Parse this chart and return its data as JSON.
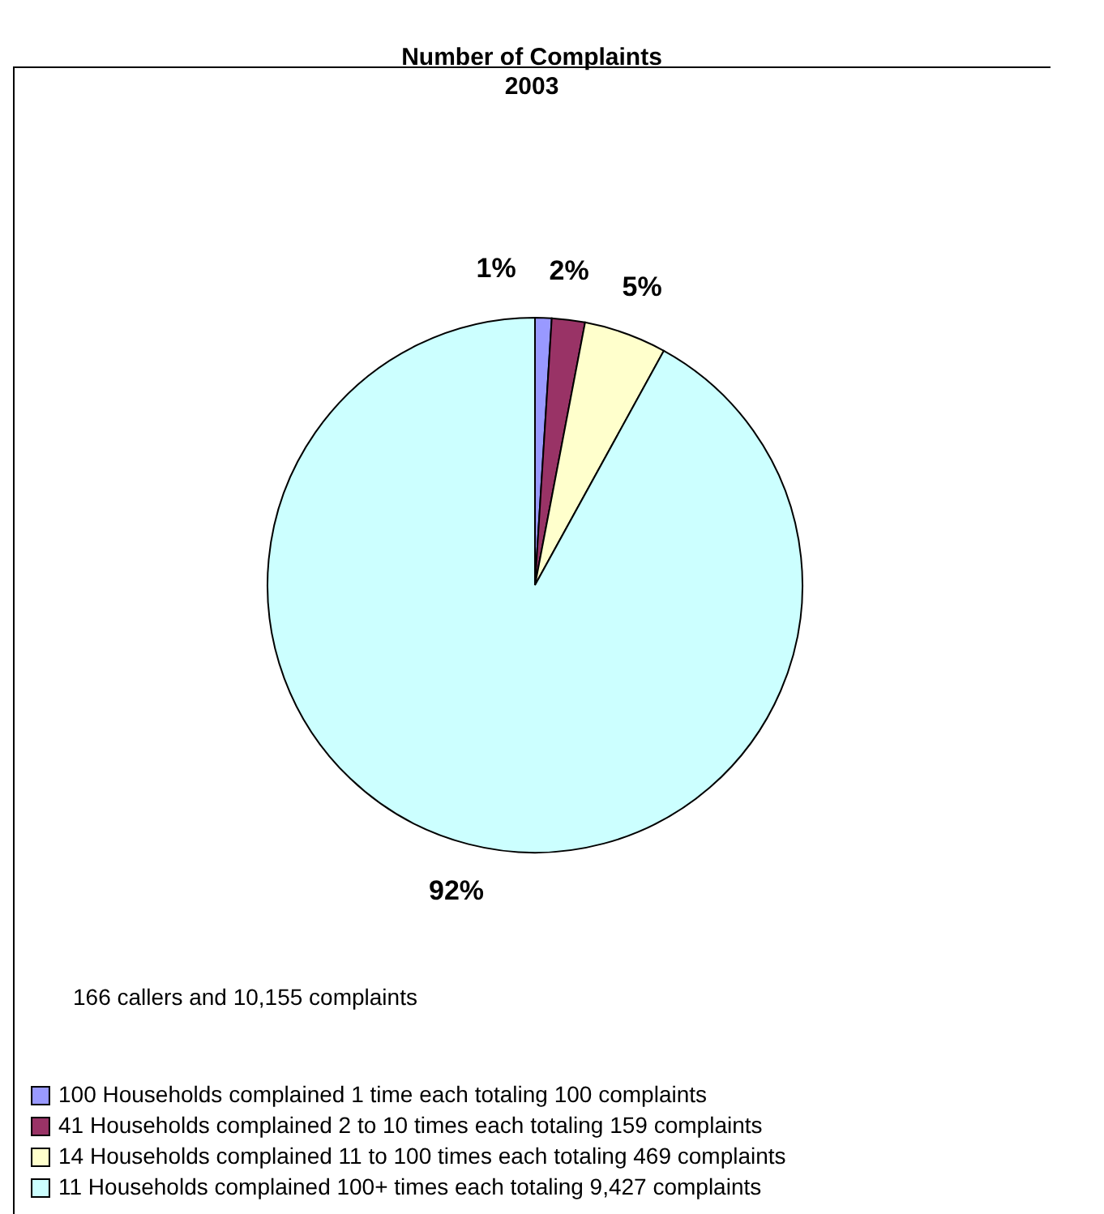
{
  "chart_data": {
    "type": "pie",
    "title": "Number of Complaints",
    "subtitle": "2003",
    "categories": [
      "100 Households complained 1 time each totaling 100 complaints",
      "41 Households complained 2 to 10 times each totaling 159 complaints",
      "14 Households complained 11 to 100 times each totaling 469 complaints",
      "11 Households complained 100+ times each totaling 9,427 complaints"
    ],
    "values": [
      1,
      2,
      5,
      92
    ],
    "colors": [
      "#9999ff",
      "#993366",
      "#ffffcc",
      "#ccffff"
    ],
    "value_labels": [
      "1%",
      "2%",
      "5%",
      "92%"
    ],
    "annotations": [
      "166 callers and 10,155 complaints"
    ],
    "legend": "bottom left"
  }
}
